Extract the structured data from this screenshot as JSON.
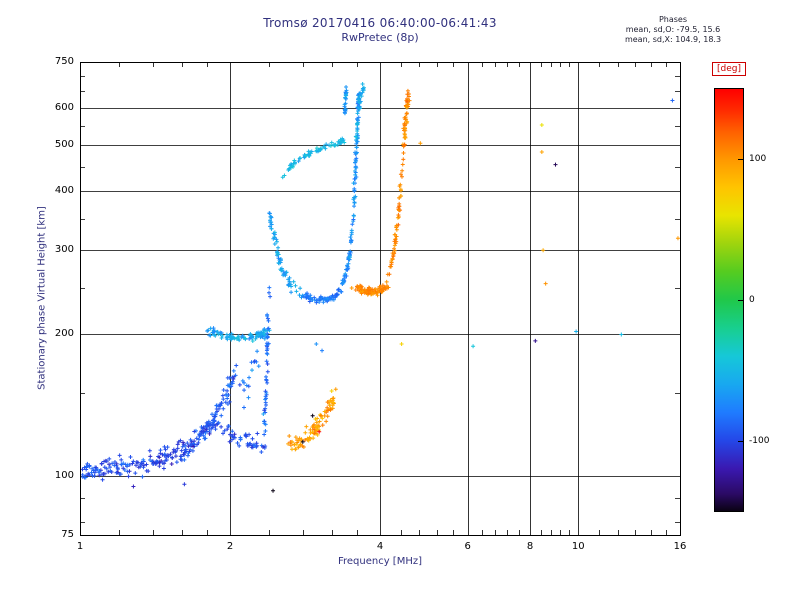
{
  "colors": {
    "background": "#ffffff",
    "axis": "#000000",
    "title_navy": "#31317e",
    "deg_red": "#cc0000"
  },
  "chart_data": {
    "type": "scatter",
    "marker": "plus",
    "title": "Tromsø 20170416 06:40:00-06:41:43",
    "subtitle": "RwPretec (8p)",
    "stats": {
      "header": "Phases",
      "line_o": "mean, sd,O: -79.5, 15.6",
      "line_x": "mean, sd,X: 104.9, 18.3"
    },
    "xlabel": "Frequency [MHz]",
    "ylabel": "Stationary phase Virtual Height [km]",
    "xscale": "log",
    "yscale": "log",
    "xlim": [
      1,
      16
    ],
    "ylim": [
      75,
      750
    ],
    "xticks": [
      1,
      2,
      4,
      6,
      8,
      10,
      16
    ],
    "yticks": [
      75,
      100,
      200,
      300,
      400,
      500,
      600,
      750
    ],
    "xminor": [
      1.2,
      1.4,
      1.6,
      1.8,
      2.4,
      2.8,
      3.2,
      3.6,
      4.4,
      4.8,
      5.2,
      5.6,
      6.4,
      6.8,
      7.2,
      7.6,
      8.4,
      8.8,
      9.2,
      9.6,
      11,
      12,
      13,
      14,
      15
    ],
    "yminor": [
      80,
      90,
      150,
      250,
      350,
      450,
      550,
      650,
      700
    ],
    "grid": true,
    "legend": false,
    "colorbar": {
      "label": "[deg]",
      "ticks": [
        100,
        0,
        -100
      ],
      "range": [
        -150,
        150
      ],
      "label_color": "#cc0000"
    },
    "colormap": [
      [
        -150,
        "#0a0214"
      ],
      [
        -138,
        "#2b0a64"
      ],
      [
        -120,
        "#3a18b0"
      ],
      [
        -100,
        "#2447e8"
      ],
      [
        -80,
        "#1f7bff"
      ],
      [
        -60,
        "#18a8f0"
      ],
      [
        -40,
        "#16c8d8"
      ],
      [
        -20,
        "#18cf8f"
      ],
      [
        0,
        "#20c84a"
      ],
      [
        20,
        "#55cc20"
      ],
      [
        40,
        "#9ed40e"
      ],
      [
        60,
        "#e8e400"
      ],
      [
        80,
        "#ffc400"
      ],
      [
        100,
        "#ff9800"
      ],
      [
        120,
        "#ff5f00"
      ],
      [
        135,
        "#ff2a00"
      ],
      [
        150,
        "#ff0000"
      ]
    ],
    "traces": [
      {
        "name": "e-region-band",
        "phase": -98,
        "phase_sd": 16,
        "n": 230,
        "f_jitter": 0.01,
        "h_jitter": 5,
        "path": [
          [
            1.0,
            102
          ],
          [
            1.08,
            103
          ],
          [
            1.16,
            104
          ],
          [
            1.25,
            105
          ],
          [
            1.35,
            106
          ],
          [
            1.45,
            108
          ],
          [
            1.55,
            111
          ],
          [
            1.63,
            114
          ],
          [
            1.72,
            119
          ],
          [
            1.8,
            126
          ],
          [
            1.88,
            131
          ]
        ]
      },
      {
        "name": "e-band-extension",
        "phase": -95,
        "phase_sd": 15,
        "n": 45,
        "f_jitter": 0.012,
        "h_jitter": 5,
        "path": [
          [
            1.92,
            126
          ],
          [
            2.02,
            122
          ],
          [
            2.14,
            118
          ],
          [
            2.26,
            116
          ],
          [
            2.36,
            114
          ]
        ]
      },
      {
        "name": "e-rise",
        "phase": -92,
        "phase_sd": 15,
        "n": 48,
        "f_jitter": 0.014,
        "h_jitter": 7,
        "path": [
          [
            1.84,
            130
          ],
          [
            1.9,
            138
          ],
          [
            1.96,
            147
          ],
          [
            2.01,
            157
          ],
          [
            2.05,
            165
          ]
        ]
      },
      {
        "name": "mid-scatter",
        "phase": -85,
        "phase_sd": 20,
        "n": 16,
        "f_jitter": 0.02,
        "h_jitter": 12,
        "path": [
          [
            2.1,
            150
          ],
          [
            2.2,
            165
          ],
          [
            2.3,
            180
          ]
        ]
      },
      {
        "name": "es-200-band",
        "phase": -60,
        "phase_sd": 16,
        "n": 90,
        "f_jitter": 0.012,
        "h_jitter": 4,
        "path": [
          [
            1.8,
            203
          ],
          [
            1.92,
            199
          ],
          [
            2.04,
            196
          ],
          [
            2.16,
            196
          ],
          [
            2.28,
            198
          ],
          [
            2.38,
            201
          ]
        ]
      },
      {
        "name": "spike-2-4",
        "phase": -85,
        "phase_sd": 18,
        "n": 48,
        "f_jitter": 0.006,
        "h_jitter": 5,
        "path": [
          [
            2.34,
            112
          ],
          [
            2.35,
            130
          ],
          [
            2.36,
            150
          ],
          [
            2.37,
            172
          ],
          [
            2.38,
            196
          ],
          [
            2.39,
            222
          ],
          [
            2.4,
            250
          ]
        ]
      },
      {
        "name": "f1-descent",
        "phase": -62,
        "phase_sd": 13,
        "n": 65,
        "f_jitter": 0.008,
        "h_jitter": 5,
        "path": [
          [
            2.4,
            360
          ],
          [
            2.44,
            330
          ],
          [
            2.48,
            302
          ],
          [
            2.53,
            278
          ],
          [
            2.6,
            260
          ],
          [
            2.7,
            248
          ],
          [
            2.82,
            241
          ]
        ]
      },
      {
        "name": "f2-minimum",
        "phase": -80,
        "phase_sd": 14,
        "n": 70,
        "f_jitter": 0.01,
        "h_jitter": 4,
        "path": [
          [
            2.82,
            240
          ],
          [
            2.95,
            237
          ],
          [
            3.1,
            236
          ],
          [
            3.25,
            240
          ],
          [
            3.35,
            248
          ]
        ]
      },
      {
        "name": "f2-rise-o",
        "phase": -72,
        "phase_sd": 15,
        "n": 110,
        "f_jitter": 0.005,
        "h_jitter": 6,
        "path": [
          [
            3.35,
            250
          ],
          [
            3.42,
            268
          ],
          [
            3.47,
            290
          ],
          [
            3.51,
            320
          ],
          [
            3.54,
            360
          ],
          [
            3.56,
            410
          ],
          [
            3.58,
            470
          ],
          [
            3.6,
            535
          ],
          [
            3.62,
            600
          ],
          [
            3.63,
            645
          ]
        ]
      },
      {
        "name": "f2-top-left-column",
        "phase": -65,
        "phase_sd": 16,
        "n": 24,
        "f_jitter": 0.004,
        "h_jitter": 16,
        "path": [
          [
            3.4,
            580
          ],
          [
            3.41,
            620
          ],
          [
            3.42,
            662
          ]
        ]
      },
      {
        "name": "f2-top-spread",
        "phase": -58,
        "phase_sd": 18,
        "n": 40,
        "f_jitter": 0.006,
        "h_jitter": 18,
        "path": [
          [
            3.57,
            480
          ],
          [
            3.6,
            545
          ],
          [
            3.63,
            605
          ],
          [
            3.66,
            645
          ],
          [
            3.7,
            655
          ]
        ]
      },
      {
        "name": "upper-arc",
        "phase": -52,
        "phase_sd": 13,
        "n": 65,
        "f_jitter": 0.009,
        "h_jitter": 6,
        "path": [
          [
            2.55,
            425
          ],
          [
            2.66,
            452
          ],
          [
            2.78,
            470
          ],
          [
            2.92,
            483
          ],
          [
            3.08,
            494
          ],
          [
            3.24,
            503
          ],
          [
            3.38,
            512
          ]
        ]
      },
      {
        "name": "es-x-low",
        "phase": 96,
        "phase_sd": 18,
        "n": 95,
        "f_jitter": 0.012,
        "h_jitter": 5,
        "path": [
          [
            2.62,
            116
          ],
          [
            2.74,
            118
          ],
          [
            2.86,
            121
          ],
          [
            2.98,
            126
          ],
          [
            3.08,
            132
          ],
          [
            3.17,
            140
          ],
          [
            3.25,
            150
          ]
        ]
      },
      {
        "name": "x-minimum",
        "phase": 106,
        "phase_sd": 10,
        "n": 95,
        "f_jitter": 0.011,
        "h_jitter": 4,
        "path": [
          [
            3.55,
            252
          ],
          [
            3.7,
            246
          ],
          [
            3.85,
            244
          ],
          [
            4.0,
            246
          ],
          [
            4.12,
            252
          ]
        ]
      },
      {
        "name": "x-rise",
        "phase": 104,
        "phase_sd": 11,
        "n": 75,
        "f_jitter": 0.006,
        "h_jitter": 6,
        "path": [
          [
            4.12,
            255
          ],
          [
            4.2,
            275
          ],
          [
            4.27,
            300
          ],
          [
            4.33,
            335
          ],
          [
            4.38,
            380
          ],
          [
            4.43,
            440
          ],
          [
            4.47,
            510
          ],
          [
            4.5,
            575
          ],
          [
            4.52,
            625
          ]
        ]
      },
      {
        "name": "x-top",
        "phase": 101,
        "phase_sd": 13,
        "n": 26,
        "f_jitter": 0.007,
        "h_jitter": 16,
        "path": [
          [
            4.48,
            500
          ],
          [
            4.52,
            560
          ],
          [
            4.55,
            615
          ],
          [
            4.57,
            645
          ]
        ]
      }
    ],
    "sparse_points": [
      [
        1.28,
        95,
        -115
      ],
      [
        1.62,
        96,
        -105
      ],
      [
        2.44,
        93,
        -150
      ],
      [
        2.98,
        190,
        -70
      ],
      [
        3.06,
        184,
        -78
      ],
      [
        2.8,
        118,
        -165
      ],
      [
        3.02,
        124,
        172
      ],
      [
        2.93,
        134,
        -172
      ],
      [
        4.42,
        190,
        72
      ],
      [
        6.15,
        188,
        -42
      ],
      [
        4.82,
        505,
        98
      ],
      [
        8.45,
        552,
        62
      ],
      [
        8.45,
        484,
        95
      ],
      [
        8.5,
        300,
        92
      ],
      [
        8.6,
        255,
        102
      ],
      [
        8.2,
        193,
        -128
      ],
      [
        9.0,
        455,
        -140
      ],
      [
        9.9,
        202,
        -55
      ],
      [
        12.2,
        199,
        -48
      ],
      [
        15.45,
        622,
        -88
      ],
      [
        15.85,
        318,
        100
      ]
    ]
  }
}
